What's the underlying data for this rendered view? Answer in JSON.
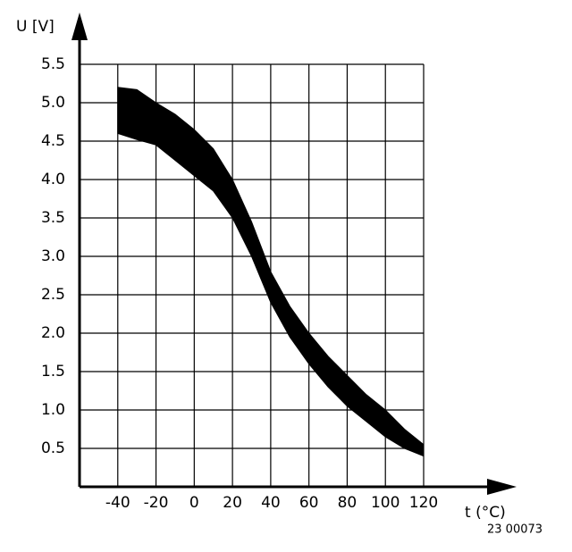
{
  "chart_data": {
    "type": "band",
    "y_label": "U [V]",
    "x_label": "t (°C)",
    "annotation": "23 00073",
    "x": [
      -40,
      -30,
      -20,
      -10,
      0,
      10,
      20,
      30,
      40,
      50,
      60,
      70,
      80,
      90,
      100,
      110,
      120
    ],
    "series": [
      {
        "color": "#000000",
        "values": [
          5.2,
          5.17,
          5.0,
          4.85,
          4.65,
          4.4,
          4.0,
          3.45,
          2.8,
          2.35,
          2.0,
          1.7,
          1.45,
          1.2,
          1.0,
          0.75,
          0.55
        ]
      },
      {
        "color": "#000000",
        "values": [
          4.6,
          4.52,
          4.45,
          4.25,
          4.05,
          3.85,
          3.5,
          3.0,
          2.4,
          1.95,
          1.6,
          1.3,
          1.05,
          0.85,
          0.65,
          0.5,
          0.4
        ]
      }
    ],
    "xlim": [
      -60,
      120
    ],
    "xticks": [
      -40,
      -20,
      0,
      20,
      40,
      60,
      80,
      100,
      120
    ],
    "ylim": [
      0,
      5.5
    ],
    "yticks": [
      0.5,
      {
        "value": 1,
        "label": "1.0"
      },
      1.5,
      {
        "value": 2,
        "label": "2.0"
      },
      2.5,
      {
        "value": 3,
        "label": "3.0"
      },
      3.5,
      {
        "value": 4,
        "label": "4.0"
      },
      4.5,
      {
        "value": 5,
        "label": "5.0"
      },
      5.5
    ],
    "grid": true
  }
}
